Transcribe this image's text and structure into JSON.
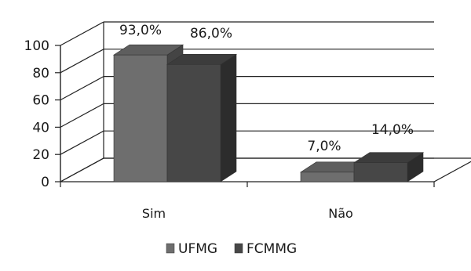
{
  "chart_data": {
    "type": "bar",
    "title": "",
    "xlabel": "",
    "ylabel": "",
    "ylim": [
      0,
      100
    ],
    "yticks": [
      0,
      20,
      40,
      60,
      80,
      100
    ],
    "categories": [
      "Sim",
      "Não"
    ],
    "series": [
      {
        "name": "UFMG",
        "values": [
          93.0,
          7.0
        ],
        "labels": [
          "93,0%",
          "7,0%"
        ],
        "color": "#6e6e6e"
      },
      {
        "name": "FCMMG",
        "values": [
          86.0,
          14.0
        ],
        "labels": [
          "86,0%",
          "14,0%"
        ],
        "color": "#474747"
      }
    ],
    "legend_position": "bottom",
    "style": "3d-clustered"
  }
}
